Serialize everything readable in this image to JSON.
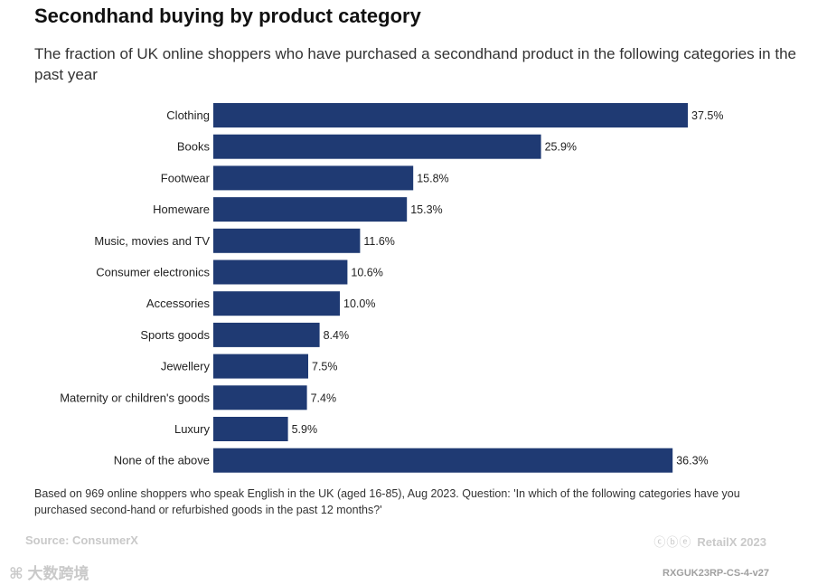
{
  "title": "Secondhand buying by product category",
  "subtitle": "The fraction of UK online shoppers who have purchased a secondhand product in the following categories in the past year",
  "colors": {
    "bar": "#1f3a73",
    "text": "#222222",
    "muted": "#c9c9c9"
  },
  "chart_data": {
    "type": "bar",
    "orientation": "horizontal",
    "categories": [
      "Clothing",
      "Books",
      "Footwear",
      "Homeware",
      "Music, movies and TV",
      "Consumer electronics",
      "Accessories",
      "Sports goods",
      "Jewellery",
      "Maternity or children's goods",
      "Luxury",
      "None of the above"
    ],
    "values": [
      37.5,
      25.9,
      15.8,
      15.3,
      11.6,
      10.6,
      10.0,
      8.4,
      7.5,
      7.4,
      5.9,
      36.3
    ],
    "value_labels": [
      "37.5%",
      "25.9%",
      "15.8%",
      "15.3%",
      "11.6%",
      "10.6%",
      "10.0%",
      "8.4%",
      "7.5%",
      "7.4%",
      "5.9%",
      "36.3%"
    ],
    "xlim": [
      0,
      37.5
    ],
    "grid": false,
    "legend": "none"
  },
  "note": "Based on 969 online shoppers who speak English in the UK (aged 16-85), Aug 2023. Question: 'In which of the following categories have you purchased second-hand or refurbished goods in the past 12 months?'",
  "source": "Source: ConsumerX",
  "brand": "RetailX 2023",
  "license_icons": "cc-by-nd-icon",
  "watermark": "大数跨境",
  "code": "RXGUK23RP-CS-4-v27"
}
